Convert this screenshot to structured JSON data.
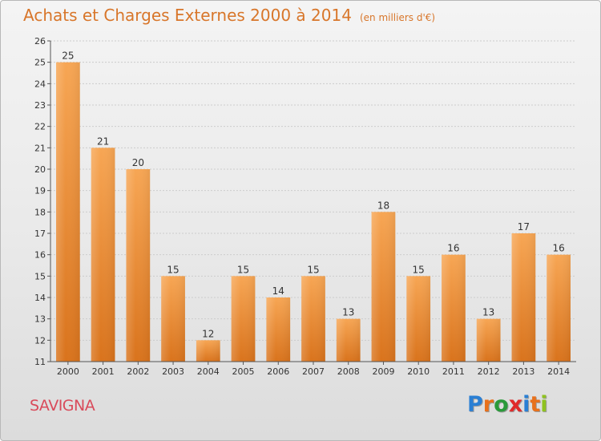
{
  "title": "Achats et Charges Externes 2000 à 2014",
  "subtitle": "(en milliers d'€)",
  "commune": "SAVIGNA",
  "logo": {
    "letters": [
      "P",
      "r",
      "o",
      "x",
      "i",
      "t",
      "i"
    ],
    "colors": [
      "#2a7fd4",
      "#e8711c",
      "#2a9a3a",
      "#e02a2a",
      "#2a7fd4",
      "#e8711c",
      "#8fc31f"
    ]
  },
  "colors": {
    "bar_top": "#f7a654",
    "bar_bottom": "#d9731c",
    "axis": "#555555",
    "grid": "#cccccc",
    "title": "#d8762a",
    "commune": "#d94a5a"
  },
  "chart_data": {
    "type": "bar",
    "categories": [
      "2000",
      "2001",
      "2002",
      "2003",
      "2004",
      "2005",
      "2006",
      "2007",
      "2008",
      "2009",
      "2010",
      "2011",
      "2012",
      "2013",
      "2014"
    ],
    "values": [
      25,
      21,
      20,
      15,
      12,
      15,
      14,
      15,
      13,
      18,
      15,
      16,
      13,
      17,
      16
    ],
    "yticks": [
      "11",
      "12",
      "13",
      "14",
      "15",
      "16",
      "17",
      "18",
      "19",
      "20",
      "21",
      "22",
      "23",
      "24",
      "25",
      "26"
    ],
    "ylim": [
      11,
      26
    ],
    "grid": true,
    "data_labels": true
  }
}
